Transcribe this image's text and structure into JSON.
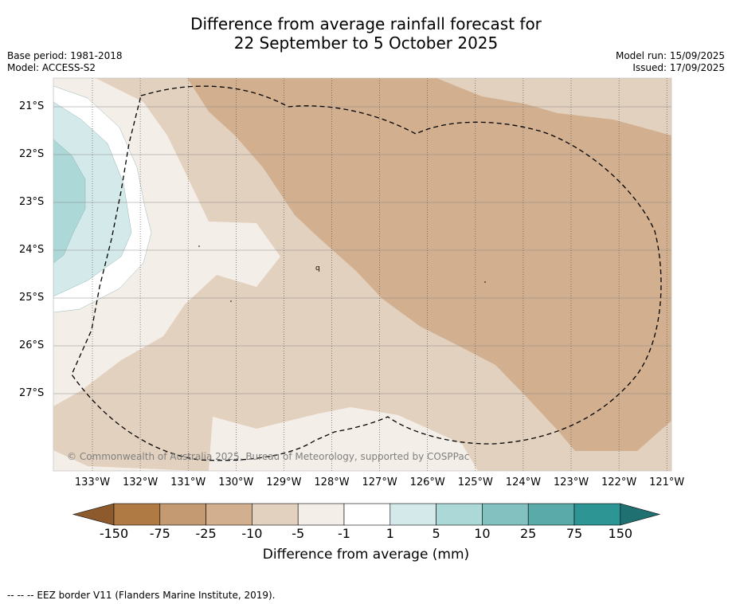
{
  "title": {
    "line1": "Difference from average rainfall forecast for",
    "line2": "22 September to 5 October 2025"
  },
  "meta_left": {
    "base_period": "Base period: 1981-2018",
    "model": "Model: ACCESS-S2"
  },
  "meta_right": {
    "model_run": "Model run: 15/09/2025",
    "issued": "Issued: 17/09/2025"
  },
  "map": {
    "latitude_labels": [
      "21°S",
      "22°S",
      "23°S",
      "24°S",
      "25°S",
      "26°S",
      "27°S"
    ],
    "longitude_labels": [
      "133°W",
      "132°W",
      "131°W",
      "130°W",
      "129°W",
      "128°W",
      "127°W",
      "126°W",
      "125°W",
      "124°W",
      "123°W",
      "122°W",
      "121°W"
    ],
    "copyright": "© Commonwealth of Australia 2025, Bureau of Meteorology, supported by COSPPac",
    "fill_colors": {
      "dry_strong": "#d2b08f",
      "dry_moderate": "#e3d1bf",
      "dry_light": "#f4eee8",
      "neutral": "#ffffff",
      "wet_light": "#d4e9e9",
      "wet_moderate": "#acd8d8"
    }
  },
  "colorbar": {
    "ticks": [
      "-150",
      "-75",
      "-25",
      "-10",
      "-5",
      "-1",
      "1",
      "5",
      "10",
      "25",
      "75",
      "150"
    ],
    "colors": [
      "#8c5a2c",
      "#b07a45",
      "#c49a72",
      "#d2b08f",
      "#e3d1bf",
      "#f4eee8",
      "#ffffff",
      "#d4e9e9",
      "#acd8d8",
      "#83c1c1",
      "#5aaaaa",
      "#2e9595",
      "#1f7070"
    ],
    "label": "Difference from average (mm)"
  },
  "footer": "--  --  -- EEZ border V11 (Flanders Marine Institute, 2019)."
}
